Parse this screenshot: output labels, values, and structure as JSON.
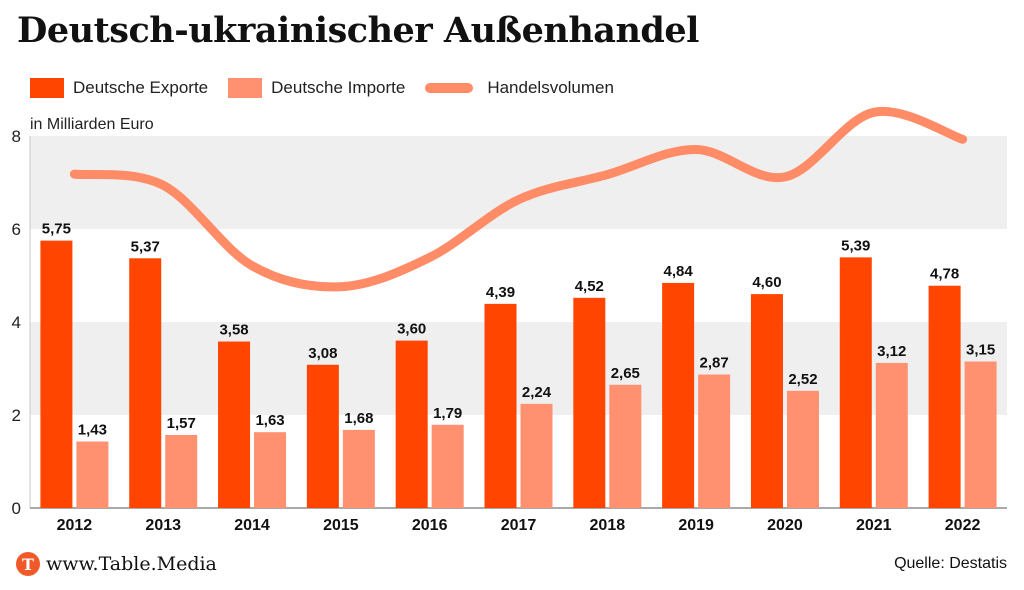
{
  "chart_data": {
    "type": "bar",
    "title": "Deutsch-ukrainischer Außenhandel",
    "ylabel": "in Milliarden Euro",
    "xlabel": "",
    "ylim": [
      0,
      8
    ],
    "yticks": [
      "0",
      "2",
      "4",
      "6",
      "8"
    ],
    "categories": [
      "2012",
      "2013",
      "2014",
      "2015",
      "2016",
      "2017",
      "2018",
      "2019",
      "2020",
      "2021",
      "2022"
    ],
    "series": [
      {
        "name": "Deutsche Exporte",
        "kind": "bar",
        "color": "#ff4500",
        "values": [
          5.75,
          5.37,
          3.58,
          3.08,
          3.6,
          4.39,
          4.52,
          4.84,
          4.6,
          5.39,
          4.78
        ],
        "labels": [
          "5,75",
          "5,37",
          "3,58",
          "3,08",
          "3,60",
          "4,39",
          "4,52",
          "4,84",
          "4,60",
          "5,39",
          "4,78"
        ]
      },
      {
        "name": "Deutsche Importe",
        "kind": "bar",
        "color": "#ff9070",
        "values": [
          1.43,
          1.57,
          1.63,
          1.68,
          1.79,
          2.24,
          2.65,
          2.87,
          2.52,
          3.12,
          3.15
        ],
        "labels": [
          "1,43",
          "1,57",
          "1,63",
          "1,68",
          "1,79",
          "2,24",
          "2,65",
          "2,87",
          "2,52",
          "3,12",
          "3,15"
        ]
      },
      {
        "name": "Handelsvolumen",
        "kind": "line",
        "color": "#ff8c66",
        "values": [
          7.18,
          6.94,
          5.21,
          4.76,
          5.39,
          6.63,
          7.17,
          7.71,
          7.12,
          8.51,
          7.93
        ]
      }
    ],
    "legend": "top-left",
    "grid": "alternating bands"
  },
  "footer": {
    "logo_letter": "T",
    "site": "www.Table.Media",
    "source": "Quelle: Destatis"
  }
}
